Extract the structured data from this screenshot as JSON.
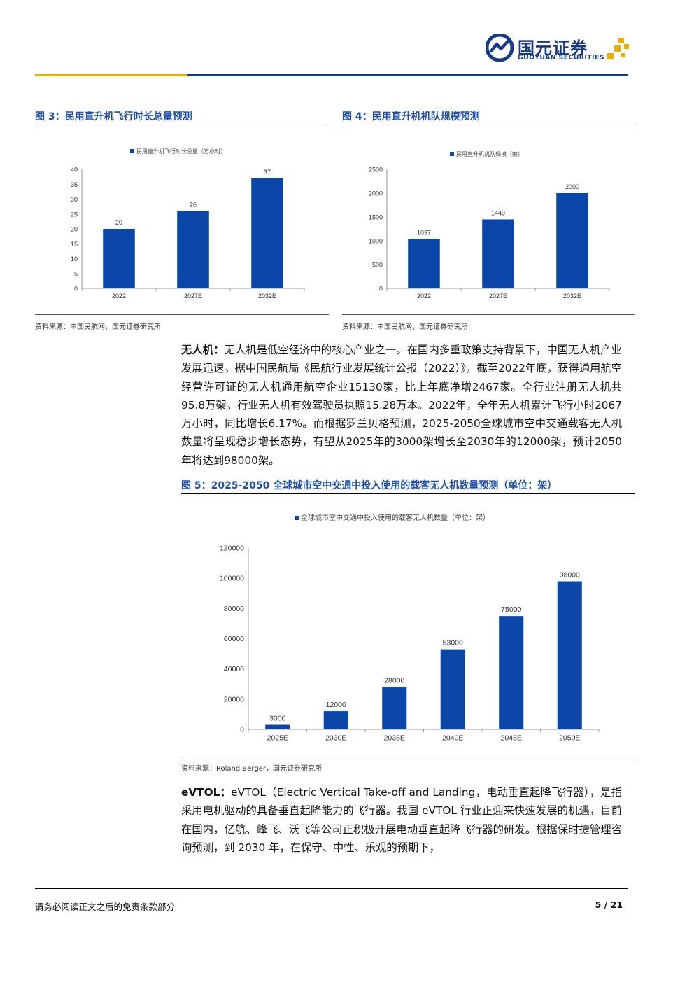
{
  "header": {
    "logo_cn": "国元证券",
    "logo_en": "GUOYUAN SECURITIES",
    "colors": {
      "brand_blue": "#163a86",
      "brand_gold": "#e9b000",
      "bar_blue": "#0b47a8",
      "title_blue": "#1f4fa8"
    }
  },
  "fig3": {
    "title": "图 3：民用直升机飞行时长总量预测",
    "source": "资料来源：中国民航网，国元证券研究所",
    "chart_data": {
      "type": "bar",
      "legend": "民用直升机飞行时长总量（万小时）",
      "categories": [
        "2022",
        "2027E",
        "2032E"
      ],
      "values": [
        20,
        26,
        37
      ],
      "ylim": [
        0,
        40
      ],
      "yticks": [
        0,
        5,
        10,
        15,
        20,
        25,
        30,
        35,
        40
      ],
      "legend_position": "top-left"
    }
  },
  "fig4": {
    "title": "图 4：民用直升机机队规模预测",
    "source": "资料来源：中国民航网，国元证券研究所",
    "chart_data": {
      "type": "bar",
      "legend": "民用直升机机队规模（架）",
      "categories": [
        "2022",
        "2027E",
        "2032E"
      ],
      "values": [
        1037,
        1449,
        2000
      ],
      "ylim": [
        0,
        2500
      ],
      "yticks": [
        0,
        500,
        1000,
        1500,
        2000,
        2500
      ],
      "legend_position": "top-left"
    }
  },
  "para1": {
    "lead": "无人机：",
    "text": "无人机是低空经济中的核心产业之一。在国内多重政策支持背景下，中国无人机产业发展迅速。据中国民航局《民航行业发展统计公报（2022）》，截至2022年底，获得通用航空经营许可证的无人机通用航空企业15130家，比上年底净增2467家。全行业注册无人机共95.8万架。行业无人机有效驾驶员执照15.28万本。2022年，全年无人机累计飞行小时2067万小时，同比增长6.17%。而根据罗兰贝格预测，2025-2050全球城市空中交通载客无人机数量将呈现稳步增长态势，有望从2025年的3000架增长至2030年的12000架，预计2050年将达到98000架。"
  },
  "fig5": {
    "title": "图 5：2025-2050 全球城市空中交通中投入使用的载客无人机数量预测（单位：架）",
    "source": "资料来源：Roland Berger，国元证券研究所",
    "chart_data": {
      "type": "bar",
      "legend": "全球城市空中交通中投入使用的载客无人机数量（单位：架）",
      "categories": [
        "2025E",
        "2030E",
        "2035E",
        "2040E",
        "2045E",
        "2050E"
      ],
      "values": [
        3000,
        12000,
        28000,
        53000,
        75000,
        98000
      ],
      "ylim": [
        0,
        120000
      ],
      "yticks": [
        0,
        20000,
        40000,
        60000,
        80000,
        100000,
        120000
      ],
      "legend_position": "top-center"
    }
  },
  "para2": {
    "lead": "eVTOL：",
    "text": "eVTOL（Electric Vertical Take-off and Landing，电动垂直起降飞行器），是指采用电机驱动的具备垂直起降能力的飞行器。我国 eVTOL 行业正迎来快速发展的机遇，目前在国内，亿航、峰飞、沃飞等公司正积极开展电动垂直起降飞行器的研发。根据保时捷管理咨询预测，到 2030 年，在保守、中性、乐观的预期下，"
  },
  "footer": {
    "disclaimer": "请务必阅读正文之后的免责条款部分",
    "page": "5 / 21"
  }
}
